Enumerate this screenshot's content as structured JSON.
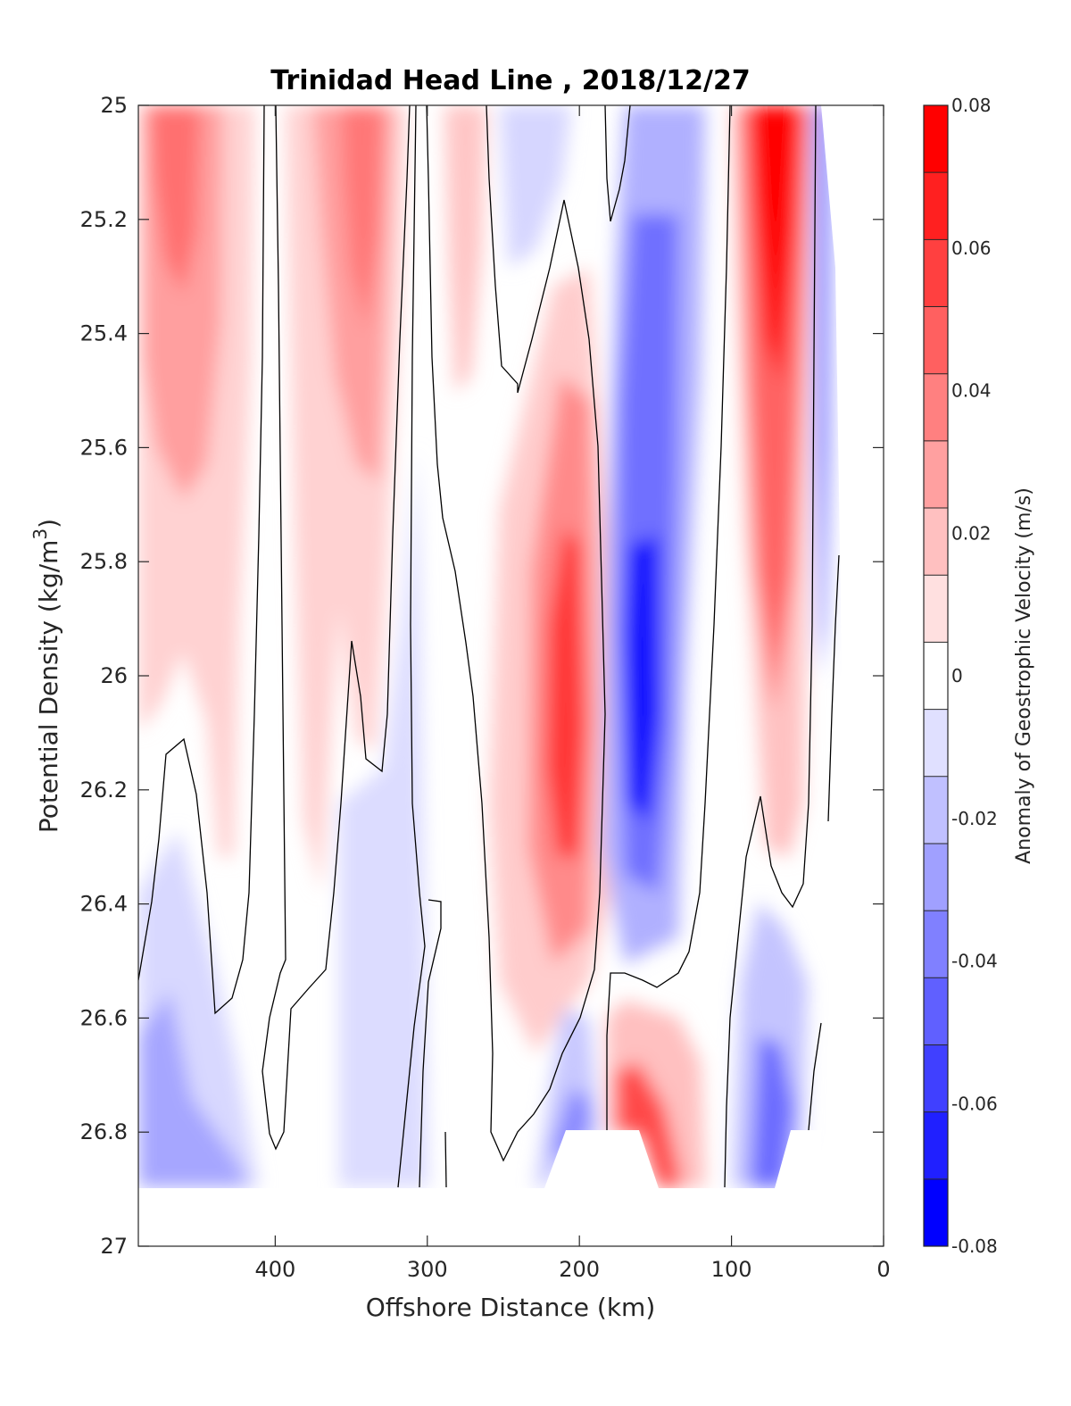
{
  "chart_data": {
    "type": "heatmap",
    "title": "Trinidad Head Line , 2018/12/27",
    "xlabel": "Offshore Distance (km)",
    "ylabel": "Potential Density (kg/m",
    "ylabel_superscript": "3",
    "ylabel_suffix": ")",
    "xlim": [
      490,
      0
    ],
    "ylim": [
      25,
      27
    ],
    "y_reversed": true,
    "x_ticks": [
      "400",
      "300",
      "200",
      "100",
      "0"
    ],
    "y_ticks": [
      "25",
      "25.2",
      "25.4",
      "25.6",
      "25.8",
      "26",
      "26.2",
      "26.4",
      "26.6",
      "26.8",
      "27"
    ],
    "colorbar": {
      "label": "Anomaly of Geostrophic Velocity (m/s)",
      "range": [
        -0.08,
        0.08
      ],
      "ticks": [
        "0.08",
        "0.06",
        "0.04",
        "0.02",
        "0",
        "-0.02",
        "-0.04",
        "-0.06",
        "-0.08"
      ],
      "levels": [
        0.08,
        0.07,
        0.06,
        0.05,
        0.04,
        0.03,
        0.02,
        0.01,
        0.0,
        -0.01,
        -0.02,
        -0.03,
        -0.04,
        -0.05,
        -0.06,
        -0.07,
        -0.08
      ],
      "colors_from_top": [
        "#ff0000",
        "#ff2020",
        "#ff4040",
        "#ff6060",
        "#ff8080",
        "#ffa0a0",
        "#ffc0c0",
        "#ffe0e0",
        "#ffffff",
        "#e0e0ff",
        "#c0c0ff",
        "#a0a0ff",
        "#8080ff",
        "#6060ff",
        "#4040ff",
        "#2020ff",
        "#0000ff"
      ]
    },
    "zero_contour_color": "#000000",
    "no_data_below_density": 26.9
  }
}
